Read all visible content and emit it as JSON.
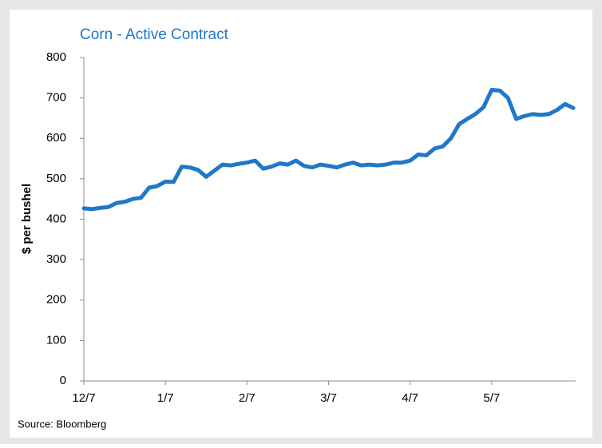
{
  "chart_data": {
    "type": "line",
    "title": "Corn - Active Contract",
    "ylabel": "$ per bushel",
    "source": "Source: Bloomberg",
    "categories": [
      "12/7",
      null,
      null,
      null,
      null,
      null,
      null,
      null,
      null,
      null,
      "1/7",
      null,
      null,
      null,
      null,
      null,
      null,
      null,
      null,
      null,
      "2/7",
      null,
      null,
      null,
      null,
      null,
      null,
      null,
      null,
      null,
      "3/7",
      null,
      null,
      null,
      null,
      null,
      null,
      null,
      null,
      null,
      "4/7",
      null,
      null,
      null,
      null,
      null,
      null,
      null,
      null,
      null,
      "5/7",
      null,
      null,
      null,
      null,
      null,
      null,
      null,
      null,
      null,
      null
    ],
    "series": [
      {
        "name": "Corn",
        "color": "#1f78c8",
        "values": [
          427,
          425,
          428,
          430,
          440,
          443,
          450,
          453,
          478,
          482,
          493,
          492,
          530,
          528,
          522,
          505,
          520,
          535,
          533,
          537,
          540,
          545,
          525,
          530,
          538,
          535,
          545,
          532,
          528,
          535,
          532,
          528,
          535,
          540,
          533,
          535,
          533,
          535,
          540,
          540,
          545,
          560,
          558,
          575,
          580,
          600,
          635,
          648,
          660,
          677,
          720,
          718,
          700,
          648,
          655,
          660,
          658,
          660,
          670,
          685,
          675
        ]
      }
    ],
    "ylim": [
      0,
      800
    ],
    "yticks": [
      0,
      100,
      200,
      300,
      400,
      500,
      600,
      700,
      800
    ],
    "grid": false
  }
}
